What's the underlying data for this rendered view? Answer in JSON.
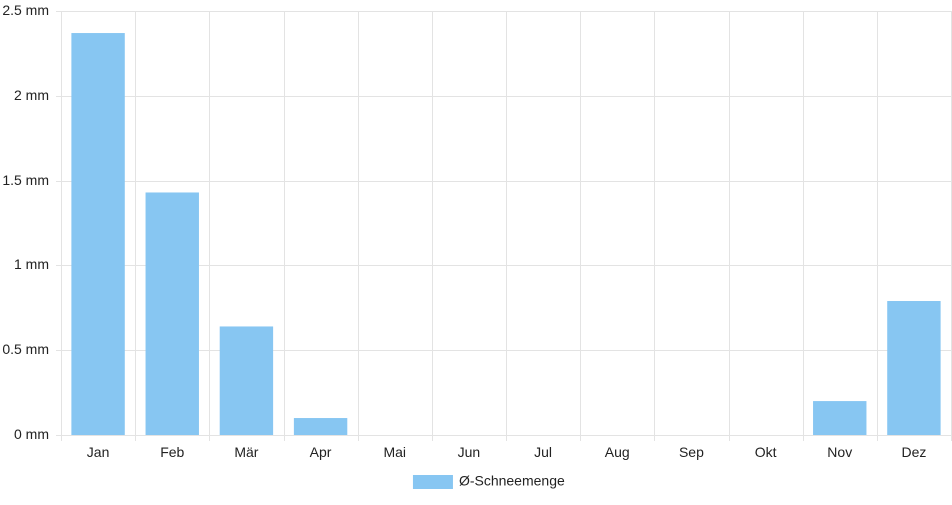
{
  "chart_data": {
    "type": "bar",
    "title": "",
    "xlabel": "",
    "ylabel": "",
    "categories": [
      "Jan",
      "Feb",
      "Mär",
      "Apr",
      "Mai",
      "Jun",
      "Jul",
      "Aug",
      "Sep",
      "Okt",
      "Nov",
      "Dez"
    ],
    "series": [
      {
        "name": "Ø-Schneemenge",
        "values": [
          2.37,
          1.43,
          0.64,
          0.1,
          0,
          0,
          0,
          0,
          0,
          0,
          0.2,
          0.79
        ],
        "color": "#87c6f2"
      }
    ],
    "ylim": [
      0,
      2.5
    ],
    "yticks": [
      "0 mm",
      "0.5 mm",
      "1 mm",
      "1.5 mm",
      "2 mm",
      "2.5 mm"
    ],
    "grid": true,
    "legend_position": "bottom-center",
    "gridline_color": "#e3e3e3"
  }
}
